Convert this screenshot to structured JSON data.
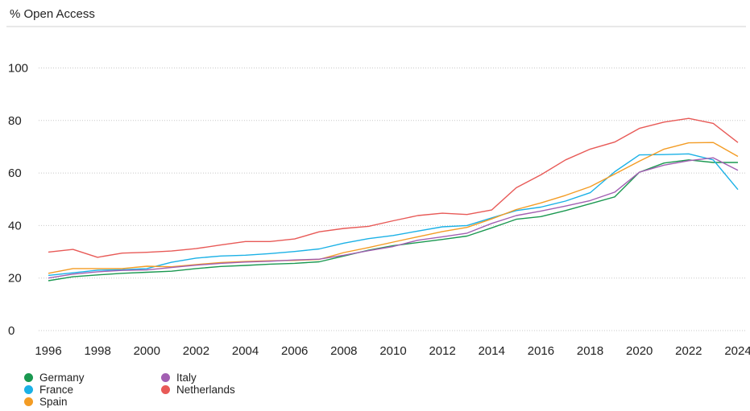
{
  "chart_data": {
    "type": "line",
    "title": "",
    "ylabel": "% Open Access",
    "xlabel": "",
    "ylim": [
      0,
      100
    ],
    "yticks": [
      0,
      20,
      40,
      60,
      80,
      100
    ],
    "xticks": [
      1996,
      1998,
      2000,
      2002,
      2004,
      2006,
      2008,
      2010,
      2012,
      2014,
      2016,
      2018,
      2020,
      2022,
      2024
    ],
    "grid": "horizontal dotted",
    "legend_position": "bottom-left",
    "x": [
      1996,
      1997,
      1998,
      1999,
      2000,
      2001,
      2002,
      2003,
      2004,
      2005,
      2006,
      2007,
      2008,
      2009,
      2010,
      2011,
      2012,
      2013,
      2014,
      2015,
      2016,
      2017,
      2018,
      2019,
      2020,
      2021,
      2022,
      2023,
      2024
    ],
    "series": [
      {
        "name": "Germany",
        "color": "#1a9850",
        "values": [
          19,
          20.5,
          21.2,
          21.8,
          22.2,
          22.6,
          23.6,
          24.4,
          24.8,
          25.3,
          25.6,
          26.2,
          28.4,
          30.6,
          32.3,
          33.5,
          34.7,
          36,
          39.1,
          42.4,
          43.4,
          45.7,
          48.3,
          50.9,
          60.3,
          63.8,
          65,
          64,
          64
        ]
      },
      {
        "name": "France",
        "color": "#1bb1e6",
        "values": [
          21,
          22,
          23,
          23.2,
          23.6,
          26,
          27.6,
          28.4,
          28.7,
          29.3,
          30.1,
          31.1,
          33.3,
          35,
          36.2,
          37.9,
          39.5,
          40,
          42.9,
          45.7,
          47,
          49.3,
          52.5,
          60.5,
          66.9,
          67,
          67.3,
          65,
          53.7
        ]
      },
      {
        "name": "Spain",
        "color": "#f39c24",
        "values": [
          21.8,
          23.6,
          23.6,
          23.6,
          24.5,
          24.3,
          25.1,
          25.9,
          26.3,
          26.6,
          26.7,
          27.1,
          29.7,
          31.6,
          33.7,
          35.7,
          37.7,
          39.3,
          42.5,
          46.1,
          48.6,
          51.5,
          54.8,
          59.6,
          64.5,
          69.1,
          71.5,
          71.6,
          66.3
        ]
      },
      {
        "name": "Italy",
        "color": "#a25fb2",
        "values": [
          20,
          21.5,
          22.4,
          22.9,
          23.1,
          24,
          24.9,
          25.6,
          26.1,
          26.4,
          26.9,
          27.2,
          28.7,
          30.4,
          32,
          34.4,
          35.7,
          37.1,
          40.8,
          43.8,
          45.5,
          47.4,
          49.5,
          52.7,
          60.3,
          63,
          64.7,
          65.8,
          61
        ]
      },
      {
        "name": "Netherlands",
        "color": "#e85a57",
        "values": [
          29.9,
          30.9,
          27.9,
          29.5,
          29.8,
          30.3,
          31.2,
          32.6,
          33.9,
          33.9,
          34.9,
          37.6,
          38.9,
          39.7,
          41.8,
          43.8,
          44.7,
          44.2,
          45.9,
          54.4,
          59.3,
          65,
          69.1,
          71.8,
          77,
          79.4,
          80.8,
          78.9,
          71.6
        ]
      }
    ]
  }
}
